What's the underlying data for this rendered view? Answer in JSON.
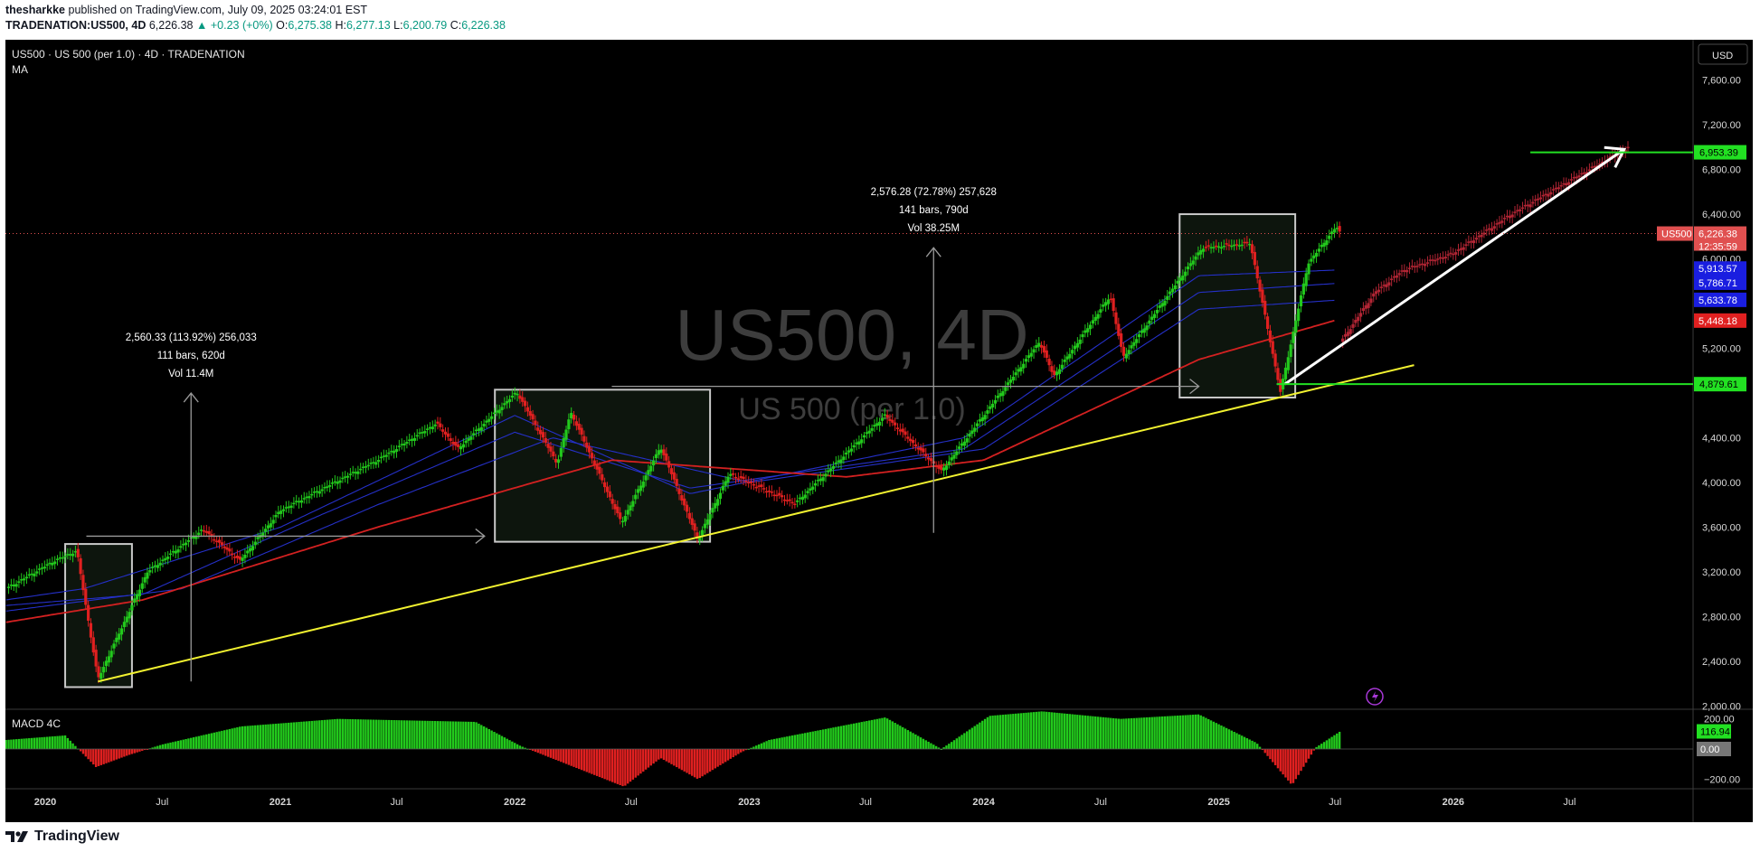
{
  "header": {
    "author": "thesharkke",
    "published": "published on TradingView.com, July 09, 2025 03:24:01 EST",
    "symbol": "TRADENATION:US500, 4D",
    "last": "6,226.38",
    "change": "▲ +0.23 (+0%)",
    "o_label": "O:",
    "o": "6,275.38",
    "h_label": "H:",
    "h": "6,277.13",
    "l_label": "L:",
    "l": "6,200.79",
    "c_label": "C:",
    "c": "6,226.38"
  },
  "pane": {
    "title": "US500 · US 500 (per 1.0) · 4D · TRADENATION",
    "indicator": "MA",
    "watermark_symbol": "US500, 4D",
    "watermark_name": "US 500 (per 1.0)",
    "currency": "USD",
    "macd_label": "MACD 4C"
  },
  "footer": {
    "brand": "TradingView"
  },
  "colors": {
    "background": "#000000",
    "bull": "#22c91c",
    "bear": "#e02020",
    "projection": "#b22534",
    "trendline": "#f2f230",
    "ma_slow": "#d32121",
    "ma_fast": "#2530c8",
    "level": "#22e022",
    "box": "#c8c8c8"
  },
  "chart_data": [
    {
      "type": "candlestick",
      "timeframe": "4D",
      "x_axis_labels": [
        "2020",
        "Jul",
        "2021",
        "Jul",
        "2022",
        "Jul",
        "2023",
        "Jul",
        "2024",
        "Jul",
        "2025",
        "Jul",
        "2026",
        "Jul"
      ],
      "y_axis_labels": [
        "7,600.00",
        "7,200.00",
        "6,800.00",
        "6,400.00",
        "6,000.00",
        "5,200.00",
        "4,400.00",
        "4,000.00",
        "3,600.00",
        "3,200.00",
        "2,800.00",
        "2,400.00",
        "2,000.00"
      ],
      "ylim": [
        1980,
        7960
      ],
      "price_path": [
        [
          "2019-11-01",
          3050
        ],
        [
          "2020-01-15",
          3300
        ],
        [
          "2020-02-19",
          3390
        ],
        [
          "2020-03-23",
          2240
        ],
        [
          "2020-06-08",
          3200
        ],
        [
          "2020-09-02",
          3580
        ],
        [
          "2020-10-30",
          3300
        ],
        [
          "2021-01-01",
          3750
        ],
        [
          "2021-06-01",
          4200
        ],
        [
          "2021-09-01",
          4530
        ],
        [
          "2021-10-04",
          4300
        ],
        [
          "2022-01-04",
          4810
        ],
        [
          "2022-03-08",
          4170
        ],
        [
          "2022-03-29",
          4630
        ],
        [
          "2022-06-16",
          3640
        ],
        [
          "2022-08-16",
          4320
        ],
        [
          "2022-10-13",
          3490
        ],
        [
          "2022-12-01",
          4080
        ],
        [
          "2023-03-13",
          3810
        ],
        [
          "2023-07-31",
          4600
        ],
        [
          "2023-10-27",
          4100
        ],
        [
          "2024-03-28",
          5260
        ],
        [
          "2024-04-19",
          4950
        ],
        [
          "2024-07-16",
          5670
        ],
        [
          "2024-08-05",
          5120
        ],
        [
          "2024-12-06",
          6100
        ],
        [
          "2025-02-19",
          6140
        ],
        [
          "2025-04-07",
          4810
        ],
        [
          "2025-05-20",
          5960
        ],
        [
          "2025-07-03",
          6290
        ],
        [
          "2025-07-09",
          6226
        ]
      ],
      "projection_path": [
        [
          "2025-07-09",
          5250
        ],
        [
          "2025-09-01",
          5700
        ],
        [
          "2025-10-15",
          5900
        ],
        [
          "2026-01-01",
          6050
        ],
        [
          "2026-04-01",
          6400
        ],
        [
          "2026-07-01",
          6700
        ],
        [
          "2026-10-01",
          7000
        ]
      ],
      "moving_averages": [
        {
          "color": "#2530c8",
          "points": [
            [
              "2019-11-01",
              2950
            ],
            [
              "2020-03-01",
              3050
            ],
            [
              "2021-01-01",
              3600
            ],
            [
              "2022-01-01",
              4600
            ],
            [
              "2022-10-01",
              3900
            ],
            [
              "2023-12-01",
              4400
            ],
            [
              "2024-12-01",
              5850
            ],
            [
              "2025-07-01",
              5900
            ]
          ]
        },
        {
          "color": "#2530c8",
          "points": [
            [
              "2019-11-01",
              2900
            ],
            [
              "2020-06-01",
              3000
            ],
            [
              "2021-03-01",
              3700
            ],
            [
              "2022-01-01",
              4450
            ],
            [
              "2022-10-01",
              3950
            ],
            [
              "2023-12-01",
              4300
            ],
            [
              "2024-12-01",
              5700
            ],
            [
              "2025-07-01",
              5780
            ]
          ]
        },
        {
          "color": "#2530c8",
          "points": [
            [
              "2019-11-01",
              2850
            ],
            [
              "2020-08-01",
              3050
            ],
            [
              "2021-06-01",
              3800
            ],
            [
              "2022-03-01",
              4400
            ],
            [
              "2023-01-01",
              4000
            ],
            [
              "2024-01-01",
              4300
            ],
            [
              "2024-12-01",
              5550
            ],
            [
              "2025-07-01",
              5630
            ]
          ]
        },
        {
          "color": "#d32121",
          "points": [
            [
              "2019-11-01",
              2750
            ],
            [
              "2020-06-01",
              2950
            ],
            [
              "2021-06-01",
              3600
            ],
            [
              "2022-06-01",
              4200
            ],
            [
              "2023-06-01",
              4050
            ],
            [
              "2024-01-01",
              4200
            ],
            [
              "2024-12-01",
              5100
            ],
            [
              "2025-07-01",
              5450
            ]
          ]
        }
      ],
      "trendlines": [
        {
          "color": "#f2f230",
          "from": [
            "2020-03-23",
            2220
          ],
          "to": [
            "2025-11-01",
            5050
          ]
        },
        {
          "color": "#ffffff",
          "from": [
            "2025-04-14",
            4880
          ],
          "to": [
            "2026-09-24",
            6980
          ]
        }
      ],
      "horizontal_levels": [
        {
          "value": 6953.39,
          "label": "6,953.39",
          "from": "2026-05-01"
        },
        {
          "value": 4879.61,
          "label": "4,879.61",
          "from": "2025-04-01"
        }
      ],
      "price_labels": [
        {
          "label": "US500",
          "value": 6226.38,
          "bg": "#e05050"
        },
        {
          "label": "6,226.38",
          "value": 6226.38,
          "bg": "#e05050"
        },
        {
          "label": "12:35:59",
          "value": 6226.38,
          "bg": "#e05050"
        },
        {
          "label": "5,913.57",
          "value": 5913.57,
          "bg": "#1a1ee0"
        },
        {
          "label": "5,786.71",
          "value": 5786.71,
          "bg": "#1a1ee0"
        },
        {
          "label": "5,633.78",
          "value": 5633.78,
          "bg": "#1a1ee0"
        },
        {
          "label": "5,448.18",
          "value": 5448.18,
          "bg": "#e02020"
        }
      ],
      "boxes": [
        {
          "from": "2020-02-01",
          "to": "2020-05-15",
          "top": 3450,
          "bottom": 2170
        },
        {
          "from": "2021-12-01",
          "to": "2022-11-01",
          "top": 4830,
          "bottom": 3470
        },
        {
          "from": "2024-11-01",
          "to": "2025-04-30",
          "top": 6400,
          "bottom": 4760
        }
      ],
      "measurements": [
        {
          "lines": [
            "2,560.33 (113.92%) 256,033",
            "111 bars, 620d",
            "Vol 11.4M"
          ],
          "x": "2020-08-15",
          "low": 2220,
          "high": 4800,
          "arrow_from": "2020-03-05",
          "arrow_to": "2021-11-15",
          "arrow_y": 3520
        },
        {
          "lines": [
            "2,576.28 (72.78%) 257,628",
            "141 bars, 790d",
            "Vol 38.25M"
          ],
          "x": "2023-10-15",
          "low": 3550,
          "high": 6100,
          "arrow_from": "2022-06-01",
          "arrow_to": "2024-12-01",
          "arrow_y": 4860
        }
      ]
    },
    {
      "type": "bar",
      "name": "MACD 4C",
      "y_axis_labels": [
        "200.00",
        "−200.00"
      ],
      "ylim": [
        -240,
        240
      ],
      "value_labels": [
        "116.94",
        "0.00"
      ],
      "histogram_path": [
        [
          "2019-11-01",
          60
        ],
        [
          "2020-02-01",
          90
        ],
        [
          "2020-03-20",
          -120
        ],
        [
          "2020-05-10",
          -40
        ],
        [
          "2020-07-01",
          30
        ],
        [
          "2020-11-01",
          150
        ],
        [
          "2021-04-01",
          200
        ],
        [
          "2021-11-01",
          180
        ],
        [
          "2022-01-10",
          20
        ],
        [
          "2022-06-20",
          -250
        ],
        [
          "2022-08-16",
          -60
        ],
        [
          "2022-10-13",
          -200
        ],
        [
          "2022-12-20",
          -20
        ],
        [
          "2023-02-01",
          60
        ],
        [
          "2023-08-01",
          210
        ],
        [
          "2023-10-27",
          0
        ],
        [
          "2024-01-10",
          220
        ],
        [
          "2024-04-01",
          250
        ],
        [
          "2024-08-01",
          200
        ],
        [
          "2024-12-01",
          230
        ],
        [
          "2025-03-01",
          40
        ],
        [
          "2025-04-25",
          -240
        ],
        [
          "2025-06-01",
          10
        ],
        [
          "2025-07-09",
          117
        ]
      ]
    }
  ]
}
